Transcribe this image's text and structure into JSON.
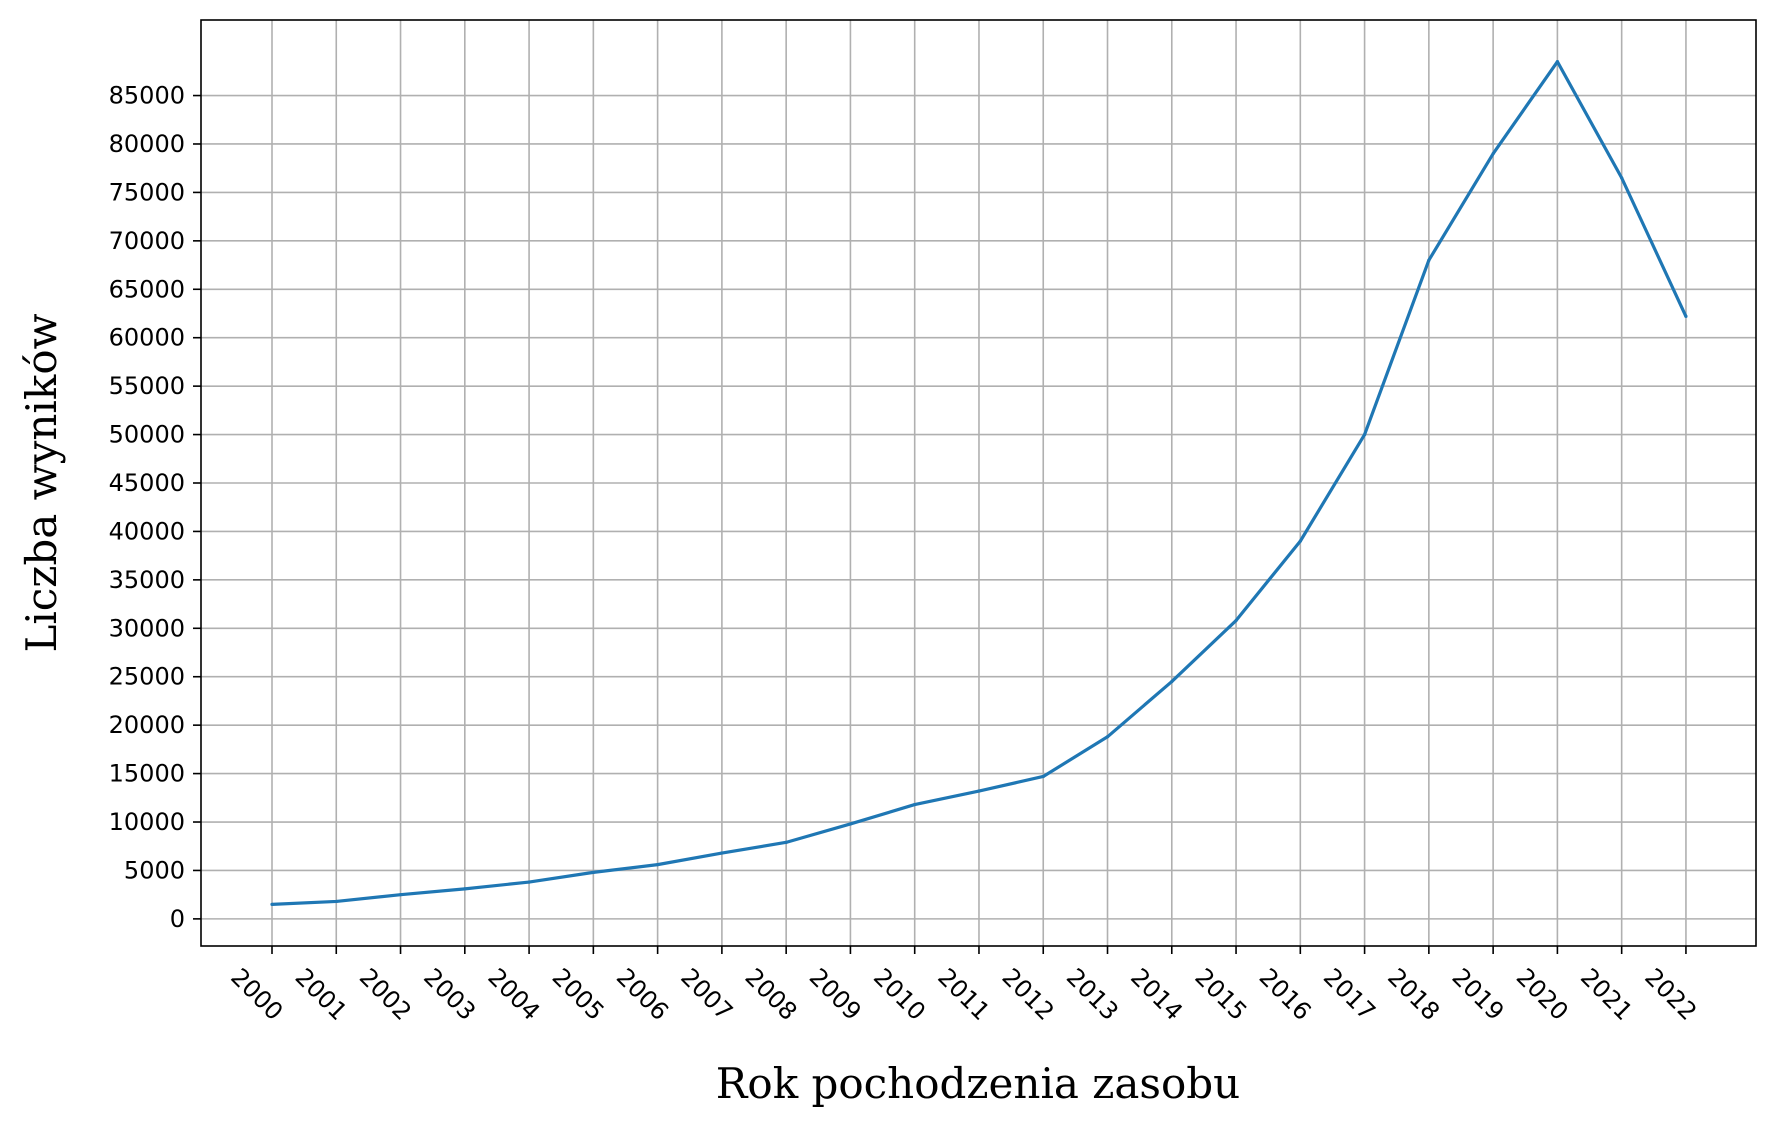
{
  "chart_data": {
    "type": "line",
    "title": "",
    "xlabel": "Rok pochodzenia zasobu",
    "ylabel": "Liczba wyników",
    "categories": [
      "2000",
      "2001",
      "2002",
      "2003",
      "2004",
      "2005",
      "2006",
      "2007",
      "2008",
      "2009",
      "2010",
      "2011",
      "2012",
      "2013",
      "2014",
      "2015",
      "2016",
      "2017",
      "2018",
      "2019",
      "2020",
      "2021",
      "2022"
    ],
    "series": [
      {
        "values": [
          1500,
          1800,
          2500,
          3100,
          3800,
          4800,
          5600,
          6800,
          7900,
          9800,
          11800,
          13200,
          14700,
          18800,
          24500,
          30800,
          39000,
          50000,
          68000,
          79000,
          88500,
          76500,
          62200
        ],
        "color": "#1f77b4"
      }
    ],
    "yticks": [
      0,
      5000,
      10000,
      15000,
      20000,
      25000,
      30000,
      35000,
      40000,
      45000,
      50000,
      55000,
      60000,
      65000,
      70000,
      75000,
      80000,
      85000
    ],
    "ytick_labels": [
      "0",
      "5000",
      "10000",
      "15000",
      "20000",
      "25000",
      "30000",
      "35000",
      "40000",
      "45000",
      "50000",
      "55000",
      "60000",
      "65000",
      "70000",
      "75000",
      "80000",
      "85000"
    ],
    "ylim": [
      -2800,
      92800
    ],
    "grid": true,
    "legend": "none"
  }
}
